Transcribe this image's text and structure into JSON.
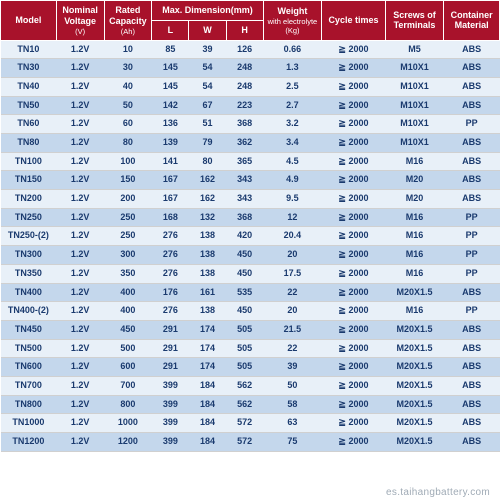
{
  "headers": {
    "model": "Model",
    "voltage": "Nominal Voltage",
    "voltage_unit": "(V)",
    "capacity": "Rated Capacity",
    "capacity_unit": "(Ah)",
    "dimension": "Max. Dimension(mm)",
    "L": "L",
    "W": "W",
    "H": "H",
    "weight": "Weight",
    "weight_sub": "with electrolyte",
    "weight_unit": "(Kg)",
    "cycle": "Cycle times",
    "screws": "Screws of Terminals",
    "material": "Container Material"
  },
  "cycle_prefix": "≧",
  "footer": "es.taihangbattery.com",
  "colors": {
    "header_bg": "#a8122b",
    "header_fg": "#ffffff",
    "row_odd": "#e8f0f8",
    "row_even": "#c4d7ec",
    "text": "#1a3a6e",
    "border": "#d0d0d0"
  },
  "rows": [
    {
      "model": "TN10",
      "voltage": "1.2V",
      "capacity": "10",
      "L": "85",
      "W": "39",
      "H": "126",
      "weight": "0.66",
      "cycle": "2000",
      "screws": "M5",
      "material": "ABS"
    },
    {
      "model": "TN30",
      "voltage": "1.2V",
      "capacity": "30",
      "L": "145",
      "W": "54",
      "H": "248",
      "weight": "1.3",
      "cycle": "2000",
      "screws": "M10X1",
      "material": "ABS"
    },
    {
      "model": "TN40",
      "voltage": "1.2V",
      "capacity": "40",
      "L": "145",
      "W": "54",
      "H": "248",
      "weight": "2.5",
      "cycle": "2000",
      "screws": "M10X1",
      "material": "ABS"
    },
    {
      "model": "TN50",
      "voltage": "1.2V",
      "capacity": "50",
      "L": "142",
      "W": "67",
      "H": "223",
      "weight": "2.7",
      "cycle": "2000",
      "screws": "M10X1",
      "material": "ABS"
    },
    {
      "model": "TN60",
      "voltage": "1.2V",
      "capacity": "60",
      "L": "136",
      "W": "51",
      "H": "368",
      "weight": "3.2",
      "cycle": "2000",
      "screws": "M10X1",
      "material": "PP"
    },
    {
      "model": "TN80",
      "voltage": "1.2V",
      "capacity": "80",
      "L": "139",
      "W": "79",
      "H": "362",
      "weight": "3.4",
      "cycle": "2000",
      "screws": "M10X1",
      "material": "ABS"
    },
    {
      "model": "TN100",
      "voltage": "1.2V",
      "capacity": "100",
      "L": "141",
      "W": "80",
      "H": "365",
      "weight": "4.5",
      "cycle": "2000",
      "screws": "M16",
      "material": "ABS"
    },
    {
      "model": "TN150",
      "voltage": "1.2V",
      "capacity": "150",
      "L": "167",
      "W": "162",
      "H": "343",
      "weight": "4.9",
      "cycle": "2000",
      "screws": "M20",
      "material": "ABS"
    },
    {
      "model": "TN200",
      "voltage": "1.2V",
      "capacity": "200",
      "L": "167",
      "W": "162",
      "H": "343",
      "weight": "9.5",
      "cycle": "2000",
      "screws": "M20",
      "material": "ABS"
    },
    {
      "model": "TN250",
      "voltage": "1.2V",
      "capacity": "250",
      "L": "168",
      "W": "132",
      "H": "368",
      "weight": "12",
      "cycle": "2000",
      "screws": "M16",
      "material": "PP"
    },
    {
      "model": "TN250-(2)",
      "voltage": "1.2V",
      "capacity": "250",
      "L": "276",
      "W": "138",
      "H": "420",
      "weight": "20.4",
      "cycle": "2000",
      "screws": "M16",
      "material": "PP"
    },
    {
      "model": "TN300",
      "voltage": "1.2V",
      "capacity": "300",
      "L": "276",
      "W": "138",
      "H": "450",
      "weight": "20",
      "cycle": "2000",
      "screws": "M16",
      "material": "PP"
    },
    {
      "model": "TN350",
      "voltage": "1.2V",
      "capacity": "350",
      "L": "276",
      "W": "138",
      "H": "450",
      "weight": "17.5",
      "cycle": "2000",
      "screws": "M16",
      "material": "PP"
    },
    {
      "model": "TN400",
      "voltage": "1.2V",
      "capacity": "400",
      "L": "176",
      "W": "161",
      "H": "535",
      "weight": "22",
      "cycle": "2000",
      "screws": "M20X1.5",
      "material": "ABS"
    },
    {
      "model": "TN400-(2)",
      "voltage": "1.2V",
      "capacity": "400",
      "L": "276",
      "W": "138",
      "H": "450",
      "weight": "20",
      "cycle": "2000",
      "screws": "M16",
      "material": "PP"
    },
    {
      "model": "TN450",
      "voltage": "1.2V",
      "capacity": "450",
      "L": "291",
      "W": "174",
      "H": "505",
      "weight": "21.5",
      "cycle": "2000",
      "screws": "M20X1.5",
      "material": "ABS"
    },
    {
      "model": "TN500",
      "voltage": "1.2V",
      "capacity": "500",
      "L": "291",
      "W": "174",
      "H": "505",
      "weight": "22",
      "cycle": "2000",
      "screws": "M20X1.5",
      "material": "ABS"
    },
    {
      "model": "TN600",
      "voltage": "1.2V",
      "capacity": "600",
      "L": "291",
      "W": "174",
      "H": "505",
      "weight": "39",
      "cycle": "2000",
      "screws": "M20X1.5",
      "material": "ABS"
    },
    {
      "model": "TN700",
      "voltage": "1.2V",
      "capacity": "700",
      "L": "399",
      "W": "184",
      "H": "562",
      "weight": "50",
      "cycle": "2000",
      "screws": "M20X1.5",
      "material": "ABS"
    },
    {
      "model": "TN800",
      "voltage": "1.2V",
      "capacity": "800",
      "L": "399",
      "W": "184",
      "H": "562",
      "weight": "58",
      "cycle": "2000",
      "screws": "M20X1.5",
      "material": "ABS"
    },
    {
      "model": "TN1000",
      "voltage": "1.2V",
      "capacity": "1000",
      "L": "399",
      "W": "184",
      "H": "572",
      "weight": "63",
      "cycle": "2000",
      "screws": "M20X1.5",
      "material": "ABS"
    },
    {
      "model": "TN1200",
      "voltage": "1.2V",
      "capacity": "1200",
      "L": "399",
      "W": "184",
      "H": "572",
      "weight": "75",
      "cycle": "2000",
      "screws": "M20X1.5",
      "material": "ABS"
    }
  ]
}
